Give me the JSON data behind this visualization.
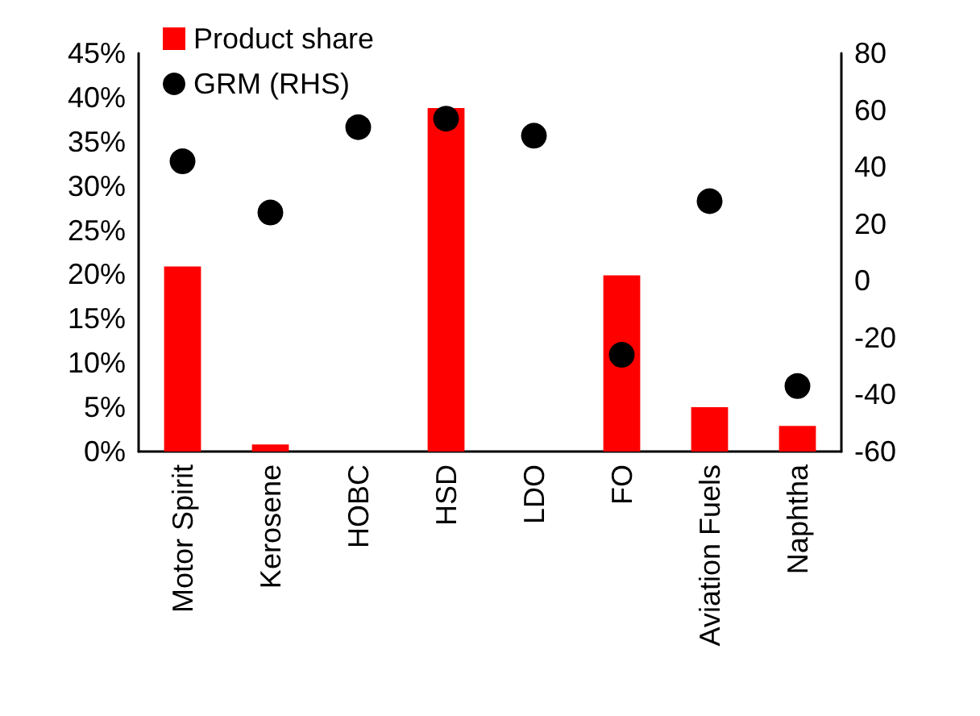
{
  "chart_data": {
    "type": "bar",
    "categories": [
      "Motor Spirit",
      "Kerosene",
      "HOBC",
      "HSD",
      "LDO",
      "FO",
      "Aviation Fuels",
      "Naphtha"
    ],
    "series": [
      {
        "name": "Product share",
        "color": "#ff0000",
        "values": [
          20.9,
          0.8,
          0,
          38.8,
          0,
          19.9,
          5.0,
          2.9
        ]
      },
      {
        "name": "GRM (RHS)",
        "type": "scatter",
        "color": "#000000",
        "axis": "y2",
        "values": [
          42,
          24,
          54,
          57,
          51,
          -26,
          28,
          -37
        ]
      }
    ],
    "ylim": [
      0,
      45
    ],
    "yticks": [
      {
        "value": 0,
        "label": "0%"
      },
      {
        "value": 5,
        "label": "5%"
      },
      {
        "value": 10,
        "label": "10%"
      },
      {
        "value": 15,
        "label": "15%"
      },
      {
        "value": 20,
        "label": "20%"
      },
      {
        "value": 25,
        "label": "25%"
      },
      {
        "value": 30,
        "label": "30%"
      },
      {
        "value": 35,
        "label": "35%"
      },
      {
        "value": 40,
        "label": "40%"
      },
      {
        "value": 45,
        "label": "45%"
      }
    ],
    "y2lim": [
      -60,
      80
    ],
    "y2ticks": [
      -60,
      -40,
      -20,
      0,
      20,
      40,
      60,
      80
    ],
    "legend": "top left",
    "grid": false,
    "marker": "circle"
  }
}
